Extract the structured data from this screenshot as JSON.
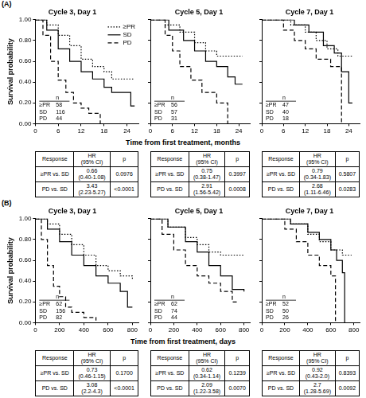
{
  "chart_data": [
    {
      "type": "step",
      "title": "Cycle 3, Day 1",
      "ylabel": "Survival probability",
      "xlim": [
        0,
        27
      ],
      "xticks": [
        0,
        6,
        12,
        18,
        24
      ],
      "ylim": [
        0,
        1
      ],
      "yticks": [
        {
          "value": 0,
          "label": "0.00"
        },
        {
          "value": 0.2,
          "label": "0.20"
        },
        {
          "value": 0.4,
          "label": "0.40"
        },
        {
          "value": 0.6,
          "label": "0.60"
        },
        {
          "value": 0.8,
          "label": "0.80"
        },
        {
          "value": 1,
          "label": "1.00"
        }
      ],
      "grid": false,
      "legend": "top right",
      "series": [
        {
          "name": "≥PR",
          "color": "#000000",
          "line_style": "dotted",
          "x": [
            0,
            3,
            6,
            9,
            12,
            15,
            18,
            20,
            26
          ],
          "values": [
            1,
            0.95,
            0.85,
            0.75,
            0.62,
            0.55,
            0.5,
            0.43,
            0.43
          ]
        },
        {
          "name": "SD",
          "color": "#000000",
          "line_style": "solid",
          "x": [
            0,
            3,
            6,
            9,
            12,
            15,
            18,
            20,
            25,
            26
          ],
          "values": [
            1,
            0.9,
            0.72,
            0.6,
            0.5,
            0.43,
            0.35,
            0.3,
            0.17,
            0.17
          ]
        },
        {
          "name": "PD",
          "color": "#000000",
          "line_style": "dashed",
          "x": [
            0,
            2,
            4,
            6,
            8,
            10,
            12,
            14,
            17
          ],
          "values": [
            1,
            0.85,
            0.6,
            0.42,
            0.3,
            0.2,
            0.15,
            0.1,
            0
          ]
        }
      ],
      "at_risk": {
        "header": "n",
        "counts": [
          58,
          116,
          44
        ]
      }
    },
    {
      "type": "step",
      "title": "Cycle 5, Day 1",
      "xlim": [
        0,
        27
      ],
      "xticks": [
        0,
        6,
        12,
        18,
        24
      ],
      "ylim": [
        0,
        1
      ],
      "yticks": [
        0,
        0.2,
        0.4,
        0.6,
        0.8,
        1
      ],
      "tick_labels": "x",
      "grid": false,
      "series": [
        {
          "name": "≥PR",
          "color": "#000000",
          "line_style": "dotted",
          "x": [
            0,
            4,
            8,
            12,
            15,
            18,
            25
          ],
          "values": [
            1,
            0.95,
            0.88,
            0.78,
            0.7,
            0.65,
            0.65
          ]
        },
        {
          "name": "SD",
          "color": "#000000",
          "line_style": "solid",
          "x": [
            0,
            5,
            9,
            12,
            15,
            18,
            21,
            23,
            25
          ],
          "values": [
            1,
            0.9,
            0.8,
            0.7,
            0.6,
            0.55,
            0.45,
            0.38,
            0.38
          ]
        },
        {
          "name": "PD",
          "color": "#000000",
          "line_style": "dashed",
          "x": [
            0,
            4,
            6,
            8,
            11,
            14,
            18,
            21
          ],
          "values": [
            1,
            0.85,
            0.7,
            0.55,
            0.42,
            0.3,
            0.2,
            0
          ]
        }
      ],
      "at_risk": {
        "header": "n",
        "counts": [
          56,
          57,
          31
        ]
      }
    },
    {
      "type": "step",
      "title": "Cycle 7, Day 1",
      "xlim": [
        0,
        27
      ],
      "xticks": [
        0,
        6,
        12,
        18,
        24
      ],
      "ylim": [
        0,
        1
      ],
      "yticks": [
        0,
        0.2,
        0.4,
        0.6,
        0.8,
        1
      ],
      "tick_labels": "x",
      "grid": false,
      "series": [
        {
          "name": "≥PR",
          "color": "#000000",
          "line_style": "dotted",
          "x": [
            0,
            8,
            12,
            15,
            18,
            21,
            25
          ],
          "values": [
            1,
            0.95,
            0.88,
            0.8,
            0.72,
            0.65,
            0.65
          ]
        },
        {
          "name": "SD",
          "color": "#000000",
          "line_style": "solid",
          "x": [
            0,
            9,
            13,
            17,
            20,
            22,
            24,
            25
          ],
          "values": [
            1,
            0.95,
            0.88,
            0.75,
            0.68,
            0.5,
            0.2,
            0.2
          ]
        },
        {
          "name": "PD",
          "color": "#000000",
          "line_style": "dashed",
          "x": [
            0,
            6,
            9,
            12,
            15,
            19,
            22
          ],
          "values": [
            1,
            0.9,
            0.8,
            0.72,
            0.62,
            0.55,
            0
          ]
        }
      ],
      "at_risk": {
        "header": "n",
        "counts": [
          47,
          40,
          18
        ]
      }
    },
    {
      "type": "step",
      "title": "Cycle 3, Day 1",
      "ylabel": "Survival probability",
      "xlim": [
        0,
        850
      ],
      "xticks": [
        0,
        200,
        400,
        600,
        800
      ],
      "ylim": [
        0,
        1
      ],
      "yticks": [
        {
          "value": 0,
          "label": "0.00"
        },
        {
          "value": 0.2,
          "label": "0.20"
        },
        {
          "value": 0.4,
          "label": "0.40"
        },
        {
          "value": 0.6,
          "label": "0.60"
        },
        {
          "value": 0.8,
          "label": "0.80"
        },
        {
          "value": 1,
          "label": "1.00"
        }
      ],
      "grid": false,
      "series": [
        {
          "name": "≥PR",
          "color": "#000000",
          "line_style": "dotted",
          "x": [
            0,
            100,
            200,
            300,
            400,
            500,
            600,
            700,
            800
          ],
          "values": [
            1,
            0.95,
            0.85,
            0.75,
            0.65,
            0.55,
            0.5,
            0.45,
            0.42
          ]
        },
        {
          "name": "SD",
          "color": "#000000",
          "line_style": "solid",
          "x": [
            0,
            100,
            200,
            300,
            400,
            500,
            600,
            700,
            760,
            800
          ],
          "values": [
            1,
            0.9,
            0.78,
            0.65,
            0.55,
            0.45,
            0.38,
            0.3,
            0.15,
            0.15
          ]
        },
        {
          "name": "PD",
          "color": "#000000",
          "line_style": "dashed",
          "x": [
            0,
            50,
            100,
            150,
            200,
            250,
            300,
            400,
            500
          ],
          "values": [
            1,
            0.8,
            0.55,
            0.35,
            0.25,
            0.15,
            0.1,
            0.05,
            0.02
          ]
        }
      ],
      "at_risk": {
        "header": "n",
        "counts": [
          62,
          156,
          82
        ]
      }
    },
    {
      "type": "step",
      "title": "Cycle 5, Day 1",
      "xlim": [
        0,
        850
      ],
      "xticks": [
        0,
        200,
        400,
        600,
        800
      ],
      "ylim": [
        0,
        1
      ],
      "yticks": [
        0,
        0.2,
        0.4,
        0.6,
        0.8,
        1
      ],
      "tick_labels": "x",
      "grid": false,
      "series": [
        {
          "name": "≥PR",
          "color": "#000000",
          "line_style": "dotted",
          "x": [
            0,
            150,
            300,
            400,
            500,
            600,
            800
          ],
          "values": [
            1,
            0.92,
            0.82,
            0.75,
            0.68,
            0.65,
            0.65
          ]
        },
        {
          "name": "SD",
          "color": "#000000",
          "line_style": "solid",
          "x": [
            0,
            150,
            300,
            400,
            500,
            600,
            700,
            800
          ],
          "values": [
            1,
            0.92,
            0.78,
            0.68,
            0.55,
            0.45,
            0.32,
            0.3
          ]
        },
        {
          "name": "PD",
          "color": "#000000",
          "line_style": "dashed",
          "x": [
            0,
            100,
            200,
            300,
            400,
            500,
            600,
            700,
            750
          ],
          "values": [
            1,
            0.85,
            0.7,
            0.55,
            0.45,
            0.38,
            0.3,
            0.2,
            0.2
          ]
        }
      ],
      "at_risk": {
        "header": "n",
        "counts": [
          62,
          74,
          44
        ]
      }
    },
    {
      "type": "step",
      "title": "Cycle 7, Day 1",
      "xlim": [
        0,
        850
      ],
      "xticks": [
        0,
        200,
        400,
        600,
        800
      ],
      "ylim": [
        0,
        1
      ],
      "yticks": [
        0,
        0.2,
        0.4,
        0.6,
        0.8,
        1
      ],
      "tick_labels": "x",
      "grid": false,
      "series": [
        {
          "name": "≥PR",
          "color": "#000000",
          "line_style": "dotted",
          "x": [
            0,
            250,
            400,
            500,
            600,
            700,
            780
          ],
          "values": [
            1,
            0.95,
            0.85,
            0.78,
            0.7,
            0.65,
            0.65
          ]
        },
        {
          "name": "SD",
          "color": "#000000",
          "line_style": "solid",
          "x": [
            0,
            250,
            400,
            500,
            600,
            650,
            700,
            720
          ],
          "values": [
            1,
            0.95,
            0.87,
            0.8,
            0.7,
            0.6,
            0.48,
            0
          ]
        },
        {
          "name": "PD",
          "color": "#000000",
          "line_style": "dashed",
          "x": [
            0,
            200,
            300,
            400,
            500,
            600,
            640
          ],
          "values": [
            1,
            0.9,
            0.78,
            0.65,
            0.55,
            0.45,
            0
          ]
        }
      ],
      "at_risk": {
        "header": "n",
        "counts": [
          52,
          50,
          26
        ]
      }
    }
  ],
  "figure": {
    "panels": [
      {
        "label": "(A)",
        "x_label": "Time from first treatment, months",
        "tables": [
          {
            "columns": [
              "Response",
              "HR\n(95% CI)",
              "p"
            ],
            "rows": [
              [
                "≥PR vs. SD",
                "0.66\n(0.40-1.08)",
                "0.0976"
              ],
              [
                "PD vs. SD",
                "3.43\n(2.23-5.27)",
                "<0.0001"
              ]
            ]
          },
          {
            "columns": [
              "Response",
              "HR\n(95% CI)",
              "p"
            ],
            "rows": [
              [
                "≥PR vs. SD",
                "0.75\n(0.38-1.47)",
                "0.3997"
              ],
              [
                "PD vs. SD",
                "2.91\n(1.56-5.42)",
                "0.0008"
              ]
            ]
          },
          {
            "columns": [
              "Response",
              "HR\n(95% CI)",
              "p"
            ],
            "rows": [
              [
                "≥PR vs. SD",
                "0.79\n(0.34-1.83)",
                "0.5807"
              ],
              [
                "PD vs. SD",
                "2.68\n(1.11-6.46)",
                "0.0283"
              ]
            ]
          }
        ]
      },
      {
        "label": "(B)",
        "x_label": "Time from first treatment, days",
        "tables": [
          {
            "columns": [
              "Response",
              "HR\n(95% CI)",
              "p"
            ],
            "rows": [
              [
                "≥PR vs. SD",
                "0.73\n(0.46-1.15)",
                "0.1700"
              ],
              [
                "PD vs. SD",
                "3.08\n(2.2-4.3)",
                "<0.0001"
              ]
            ]
          },
          {
            "columns": [
              "Response",
              "HR\n(95% CI)",
              "p"
            ],
            "rows": [
              [
                "≥PR vs. SD",
                "0.62\n(0.34-1.14)",
                "0.1239"
              ],
              [
                "PD vs. SD",
                "2.09\n(1.22-3.58)",
                "0.0070"
              ]
            ]
          },
          {
            "columns": [
              "Response",
              "HR\n(95% CI)",
              "p"
            ],
            "rows": [
              [
                "≥PR vs. SD",
                "0.92\n(0.43-2.0)",
                "0.8393"
              ],
              [
                "PD vs. SD",
                "2.7\n(1.28-5.69)",
                "0.0092"
              ]
            ]
          }
        ]
      }
    ]
  }
}
